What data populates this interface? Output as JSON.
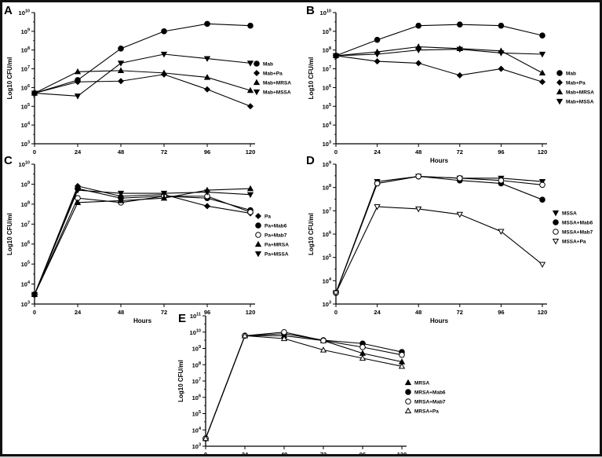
{
  "chart_data": [
    {
      "type": "line",
      "panel": "A",
      "xlabel": "",
      "ylabel": "Log10 CFU/ml",
      "x": [
        0,
        24,
        48,
        72,
        96,
        120
      ],
      "xticks": [
        "0",
        "24",
        "48",
        "72",
        "96",
        "120"
      ],
      "y_log": true,
      "ylim_exp": [
        3,
        10
      ],
      "legend_position": "right",
      "series": [
        {
          "name": "Mab",
          "marker": "circle",
          "fill": "filled",
          "values": [
            500000.0,
            2500000.0,
            120000000.0,
            1000000000.0,
            2500000000.0,
            2000000000.0
          ]
        },
        {
          "name": "Mab+Pa",
          "marker": "diamond",
          "fill": "filled",
          "values": [
            500000.0,
            2000000.0,
            2200000.0,
            5000000.0,
            800000.0,
            100000.0
          ]
        },
        {
          "name": "Mab+MRSA",
          "marker": "triangle-up",
          "fill": "filled",
          "values": [
            500000.0,
            7000000.0,
            8000000.0,
            6000000.0,
            3500000.0,
            700000.0
          ]
        },
        {
          "name": "Mab+MSSA",
          "marker": "triangle-down",
          "fill": "filled",
          "values": [
            500000.0,
            350000.0,
            20000000.0,
            60000000.0,
            35000000.0,
            20000000.0
          ]
        }
      ]
    },
    {
      "type": "line",
      "panel": "B",
      "xlabel": "Hours",
      "ylabel": "Log10 CFU/ml",
      "x": [
        0,
        24,
        48,
        72,
        96,
        120
      ],
      "xticks": [
        "0",
        "24",
        "48",
        "72",
        "96",
        "120"
      ],
      "y_log": true,
      "ylim_exp": [
        3,
        10
      ],
      "legend_position": "right",
      "series": [
        {
          "name": "Mab",
          "marker": "circle",
          "fill": "filled",
          "values": [
            50000000.0,
            350000000.0,
            2000000000.0,
            2300000000.0,
            2000000000.0,
            600000000.0
          ]
        },
        {
          "name": "Mab+Pa",
          "marker": "diamond",
          "fill": "filled",
          "values": [
            50000000.0,
            25000000.0,
            20000000.0,
            4500000.0,
            10000000.0,
            2000000.0
          ]
        },
        {
          "name": "Mab+MRSA",
          "marker": "triangle-up",
          "fill": "filled",
          "values": [
            50000000.0,
            80000000.0,
            150000000.0,
            120000000.0,
            90000000.0,
            6000000.0
          ]
        },
        {
          "name": "Mab+MSSA",
          "marker": "triangle-down",
          "fill": "filled",
          "values": [
            50000000.0,
            60000000.0,
            100000000.0,
            110000000.0,
            70000000.0,
            60000000.0
          ]
        }
      ]
    },
    {
      "type": "line",
      "panel": "C",
      "xlabel": "Hours",
      "ylabel": "Log10 CFU/ml",
      "x": [
        0,
        24,
        48,
        72,
        96,
        120
      ],
      "xticks": [
        "0",
        "24",
        "48",
        "72",
        "96",
        "120"
      ],
      "y_log": true,
      "ylim_exp": [
        3,
        10
      ],
      "legend_position": "right",
      "series": [
        {
          "name": "Pa",
          "marker": "diamond",
          "fill": "filled",
          "values": [
            3000.0,
            800000000.0,
            250000000.0,
            300000000.0,
            80000000.0,
            35000000.0
          ]
        },
        {
          "name": "Pa+Mab6",
          "marker": "circle",
          "fill": "filled",
          "values": [
            3000.0,
            600000000.0,
            200000000.0,
            250000000.0,
            200000000.0,
            50000000.0
          ]
        },
        {
          "name": "Pa+Mab7",
          "marker": "circle",
          "fill": "open",
          "values": [
            3000.0,
            200000000.0,
            120000000.0,
            250000000.0,
            250000000.0,
            40000000.0
          ]
        },
        {
          "name": "Pa+MRSA",
          "marker": "triangle-up",
          "fill": "filled",
          "values": [
            3000.0,
            120000000.0,
            150000000.0,
            200000000.0,
            500000000.0,
            600000000.0
          ]
        },
        {
          "name": "Pa+MSSA",
          "marker": "triangle-down",
          "fill": "filled",
          "values": [
            3000.0,
            500000000.0,
            350000000.0,
            350000000.0,
            400000000.0,
            300000000.0
          ]
        }
      ]
    },
    {
      "type": "line",
      "panel": "D",
      "xlabel": "Hours",
      "ylabel": "Log10 CFU/ml",
      "x": [
        0,
        24,
        48,
        72,
        96,
        120
      ],
      "xticks": [
        "0",
        "24",
        "48",
        "72",
        "96",
        "120"
      ],
      "y_log": true,
      "ylim_exp": [
        3,
        9
      ],
      "legend_position": "right",
      "series": [
        {
          "name": "MSSA",
          "marker": "triangle-down",
          "fill": "filled",
          "values": [
            3000.0,
            180000000.0,
            300000000.0,
            250000000.0,
            250000000.0,
            180000000.0
          ]
        },
        {
          "name": "MSSA+Mab6",
          "marker": "circle",
          "fill": "filled",
          "values": [
            3000.0,
            150000000.0,
            300000000.0,
            200000000.0,
            150000000.0,
            30000000.0
          ]
        },
        {
          "name": "MSSA+Mab7",
          "marker": "circle",
          "fill": "open",
          "values": [
            3000.0,
            150000000.0,
            300000000.0,
            250000000.0,
            200000000.0,
            130000000.0
          ]
        },
        {
          "name": "MSSA+Pa",
          "marker": "triangle-down",
          "fill": "open",
          "values": [
            3000.0,
            15000000.0,
            12000000.0,
            7000000.0,
            1300000.0,
            50000.0
          ]
        }
      ]
    },
    {
      "type": "line",
      "panel": "E",
      "xlabel": "Hours",
      "ylabel": "Log10 CFU/ml",
      "x": [
        0,
        24,
        48,
        72,
        96,
        120
      ],
      "xticks": [
        "0",
        "24",
        "48",
        "72",
        "96",
        "120"
      ],
      "y_log": true,
      "ylim_exp": [
        3,
        11
      ],
      "legend_position": "right",
      "series": [
        {
          "name": "MRSA",
          "marker": "triangle-up",
          "fill": "filled",
          "values": [
            3000.0,
            6000000000.0,
            6000000000.0,
            3000000000.0,
            500000000.0,
            150000000.0
          ]
        },
        {
          "name": "MRSA+Mab6",
          "marker": "circle",
          "fill": "filled",
          "values": [
            3000.0,
            6000000000.0,
            8000000000.0,
            3200000000.0,
            2000000000.0,
            600000000.0
          ]
        },
        {
          "name": "MRSA+Mab7",
          "marker": "circle",
          "fill": "open",
          "values": [
            3000.0,
            6000000000.0,
            10000000000.0,
            3000000000.0,
            1200000000.0,
            400000000.0
          ]
        },
        {
          "name": "MRSA+Pa",
          "marker": "triangle-up",
          "fill": "open",
          "values": [
            3000.0,
            6000000000.0,
            4000000000.0,
            800000000.0,
            250000000.0,
            80000000.0
          ]
        }
      ]
    }
  ]
}
